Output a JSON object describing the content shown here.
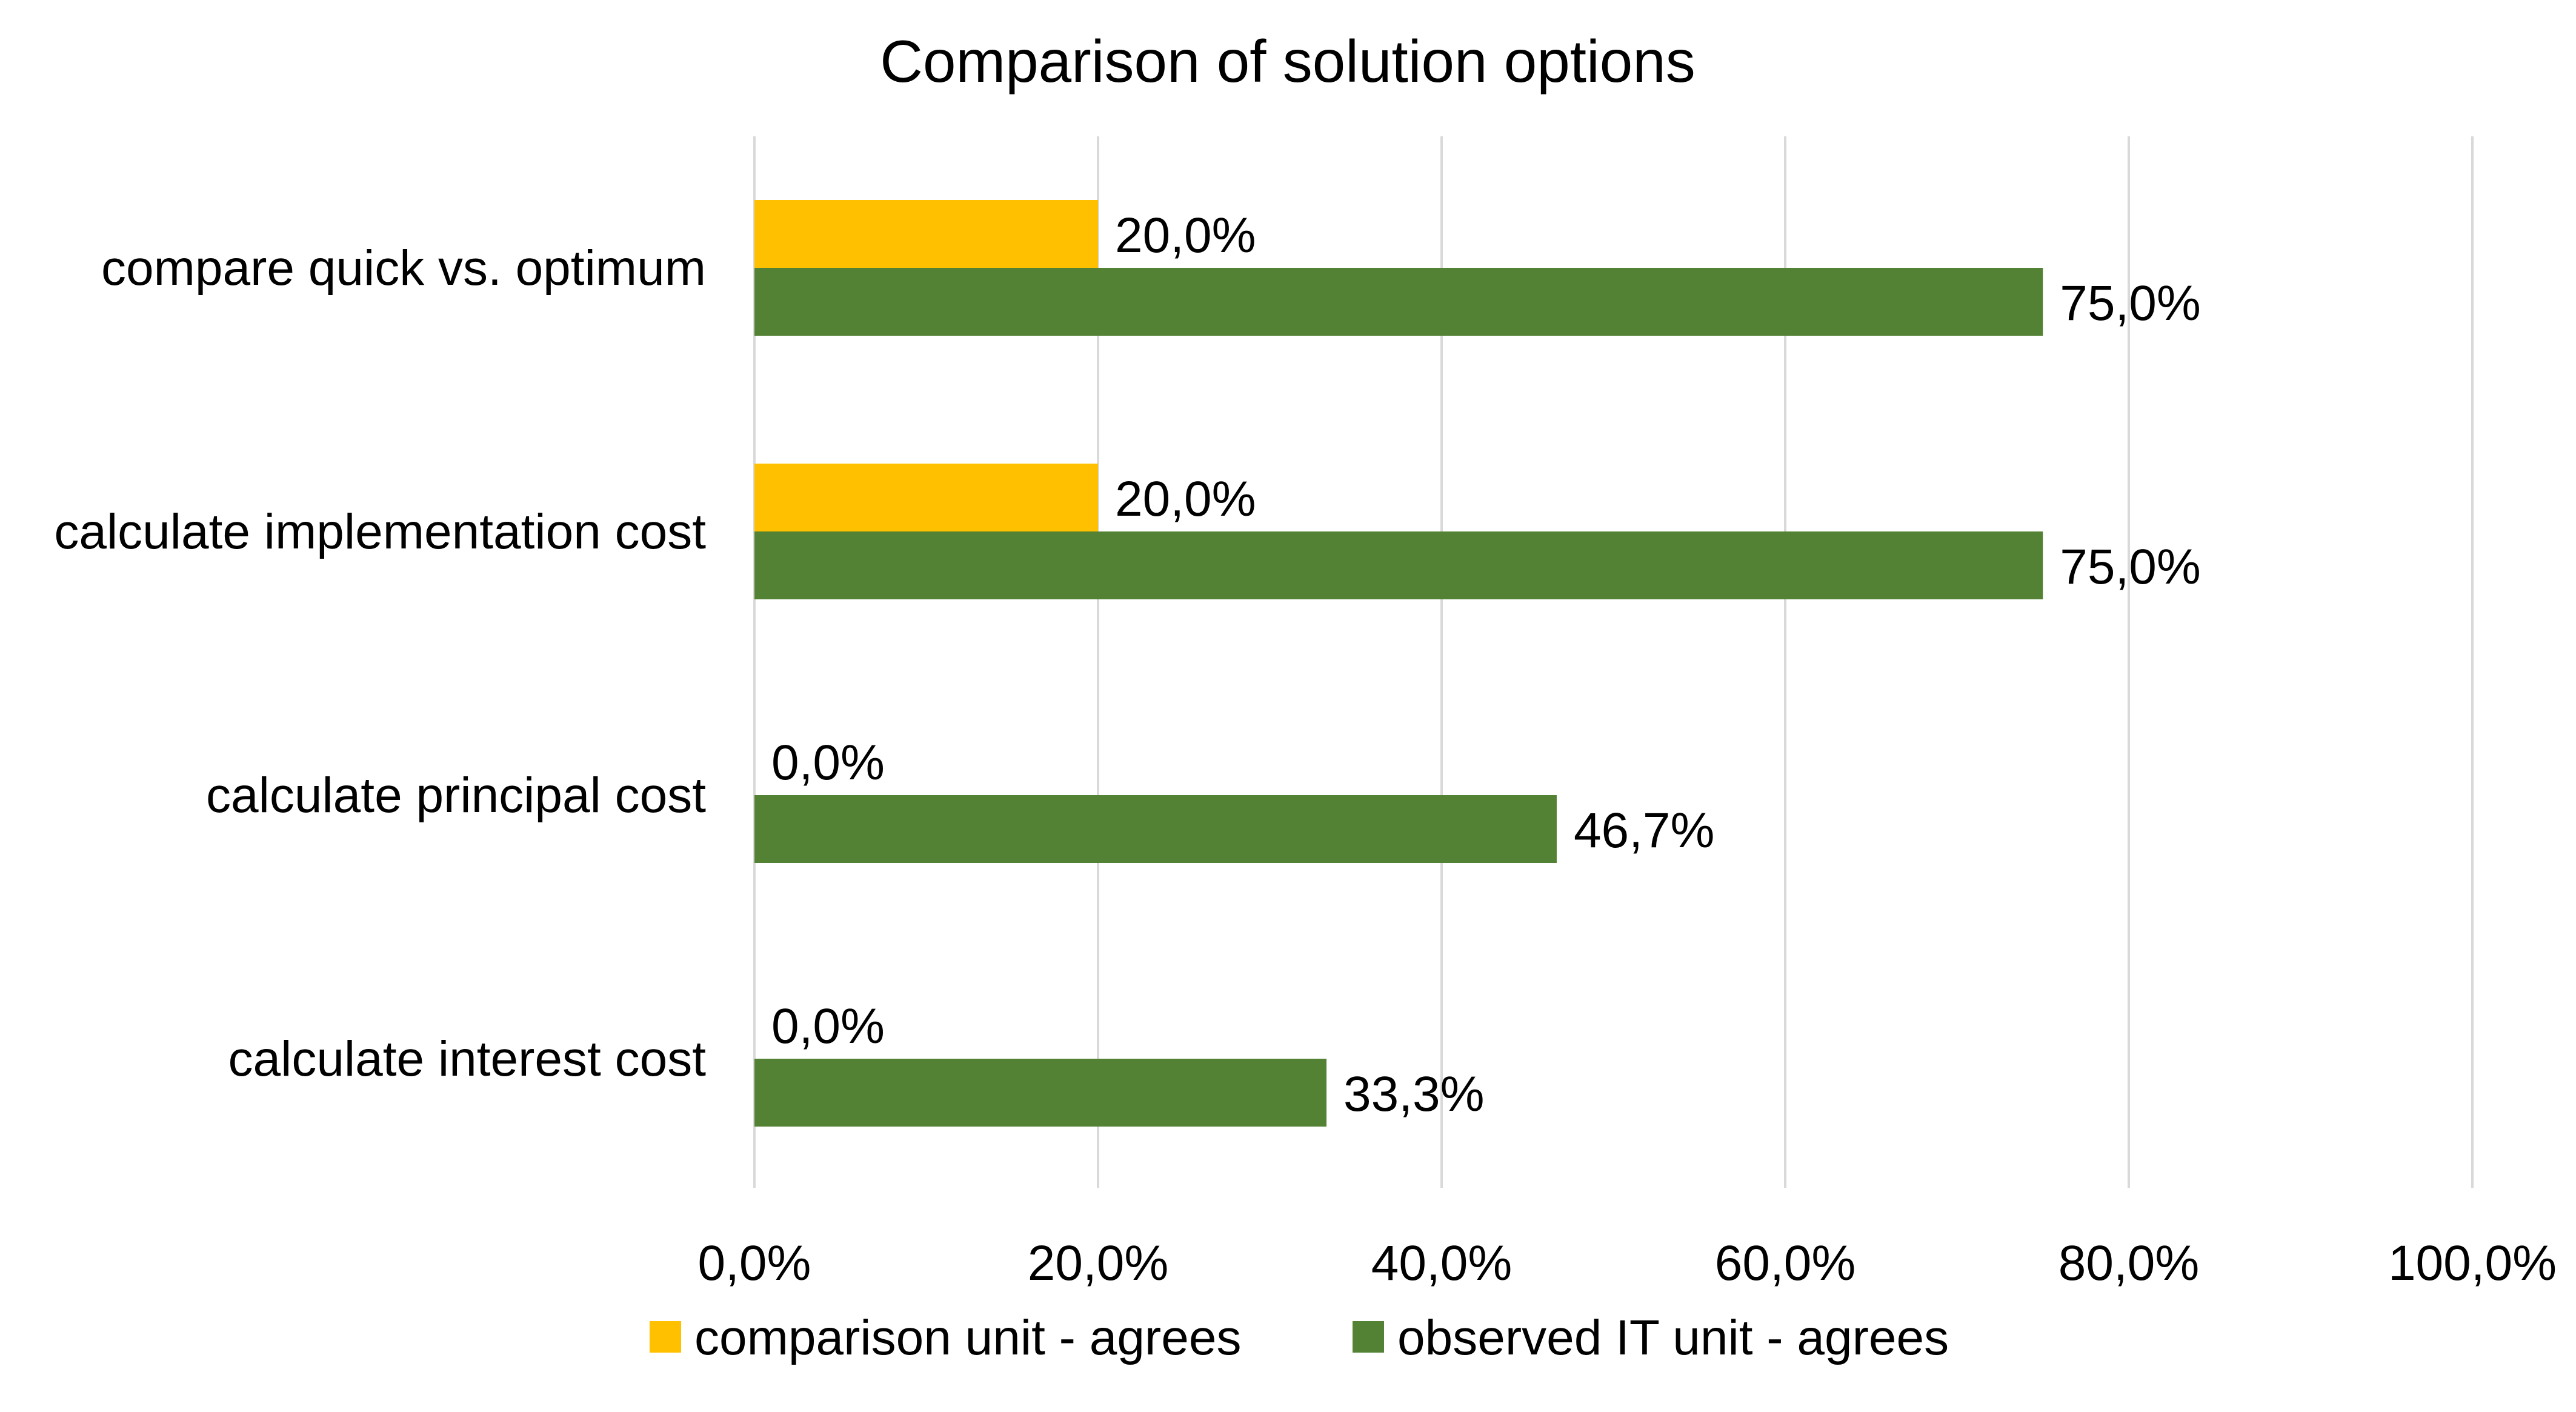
{
  "chart_data": {
    "type": "bar",
    "orientation": "horizontal",
    "title": "Comparison of solution options",
    "xlabel": "",
    "ylabel": "",
    "categories": [
      "compare quick vs. optimum",
      "calculate implementation cost",
      "calculate principal cost",
      "calculate interest cost"
    ],
    "series": [
      {
        "name": "comparison unit - agrees",
        "color": "#ffc000",
        "values": [
          20.0,
          20.0,
          0.0,
          0.0
        ],
        "labels": [
          "20,0%",
          "20,0%",
          "0,0%",
          "0,0%"
        ]
      },
      {
        "name": "observed IT unit - agrees",
        "color": "#548235",
        "values": [
          75.0,
          75.0,
          46.7,
          33.3
        ],
        "labels": [
          "75,0%",
          "75,0%",
          "46,7%",
          "33,3%"
        ]
      }
    ],
    "xlim": [
      0,
      100
    ],
    "x_ticks": [
      0,
      20,
      40,
      60,
      80,
      100
    ],
    "x_tick_labels": [
      "0,0%",
      "20,0%",
      "40,0%",
      "60,0%",
      "80,0%",
      "100,0%"
    ],
    "grid": "vertical",
    "legend": "bottom"
  }
}
